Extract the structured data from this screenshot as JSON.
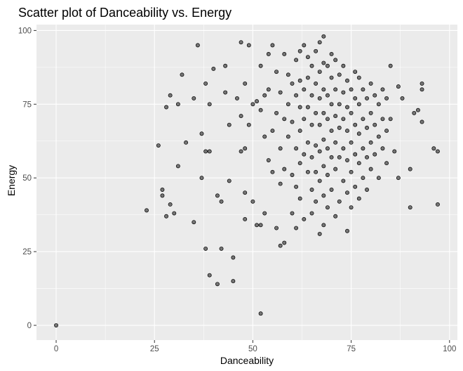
{
  "chart_data": {
    "type": "scatter",
    "title": "Scatter plot of Danceability vs. Energy",
    "xlabel": "Danceability",
    "ylabel": "Energy",
    "xlim": [
      -5,
      102
    ],
    "ylim": [
      -5,
      102
    ],
    "x_ticks": [
      0,
      25,
      50,
      75,
      100
    ],
    "y_ticks": [
      0,
      25,
      50,
      75,
      100
    ],
    "x_tick_labels": [
      "0",
      "25",
      "50",
      "75",
      "100"
    ],
    "y_tick_labels": [
      "0",
      "25",
      "50",
      "75",
      "100"
    ],
    "grid": true,
    "panel_color": "#ebebeb",
    "grid_color": "#ffffff",
    "point_color": "#4d4d4d",
    "point_outline": "#000000",
    "points": [
      [
        0,
        0
      ],
      [
        23,
        39
      ],
      [
        26,
        61
      ],
      [
        27,
        46
      ],
      [
        27,
        44
      ],
      [
        28,
        37
      ],
      [
        28,
        74
      ],
      [
        29,
        78
      ],
      [
        29,
        41
      ],
      [
        30,
        38
      ],
      [
        31,
        54
      ],
      [
        31,
        75
      ],
      [
        32,
        85
      ],
      [
        33,
        62
      ],
      [
        35,
        35
      ],
      [
        35,
        77
      ],
      [
        36,
        95
      ],
      [
        37,
        65
      ],
      [
        37,
        50
      ],
      [
        38,
        59
      ],
      [
        38,
        82
      ],
      [
        38,
        26
      ],
      [
        39,
        59
      ],
      [
        39,
        75
      ],
      [
        39,
        17
      ],
      [
        40,
        87
      ],
      [
        41,
        14
      ],
      [
        41,
        44
      ],
      [
        42,
        42
      ],
      [
        42,
        26
      ],
      [
        43,
        88
      ],
      [
        43,
        79
      ],
      [
        44,
        68
      ],
      [
        44,
        49
      ],
      [
        45,
        15
      ],
      [
        45,
        23
      ],
      [
        46,
        77
      ],
      [
        47,
        59
      ],
      [
        47,
        71
      ],
      [
        47,
        96
      ],
      [
        48,
        82
      ],
      [
        48,
        45
      ],
      [
        48,
        36
      ],
      [
        48,
        60
      ],
      [
        49,
        68
      ],
      [
        49,
        95
      ],
      [
        50,
        75
      ],
      [
        50,
        42
      ],
      [
        51,
        34
      ],
      [
        51,
        76
      ],
      [
        52,
        4
      ],
      [
        52,
        73
      ],
      [
        52,
        34
      ],
      [
        52,
        88
      ],
      [
        53,
        78
      ],
      [
        53,
        38
      ],
      [
        53,
        64
      ],
      [
        54,
        56
      ],
      [
        54,
        80
      ],
      [
        54,
        92
      ],
      [
        55,
        52
      ],
      [
        55,
        66
      ],
      [
        55,
        95
      ],
      [
        56,
        33
      ],
      [
        56,
        72
      ],
      [
        56,
        86
      ],
      [
        57,
        27
      ],
      [
        57,
        48
      ],
      [
        57,
        60
      ],
      [
        57,
        79
      ],
      [
        58,
        28
      ],
      [
        58,
        53
      ],
      [
        58,
        70
      ],
      [
        58,
        92
      ],
      [
        59,
        64
      ],
      [
        59,
        75
      ],
      [
        59,
        85
      ],
      [
        60,
        38
      ],
      [
        60,
        51
      ],
      [
        60,
        69
      ],
      [
        60,
        82
      ],
      [
        61,
        33
      ],
      [
        61,
        47
      ],
      [
        61,
        60
      ],
      [
        61,
        78
      ],
      [
        61,
        90
      ],
      [
        62,
        43
      ],
      [
        62,
        55
      ],
      [
        62,
        66
      ],
      [
        62,
        74
      ],
      [
        62,
        83
      ],
      [
        62,
        93
      ],
      [
        63,
        36
      ],
      [
        63,
        58
      ],
      [
        63,
        70
      ],
      [
        63,
        80
      ],
      [
        63,
        95
      ],
      [
        64,
        52
      ],
      [
        64,
        62
      ],
      [
        64,
        74
      ],
      [
        64,
        84
      ],
      [
        64,
        91
      ],
      [
        65,
        38
      ],
      [
        65,
        46
      ],
      [
        65,
        57
      ],
      [
        65,
        68
      ],
      [
        65,
        78
      ],
      [
        65,
        88
      ],
      [
        66,
        42
      ],
      [
        66,
        52
      ],
      [
        66,
        61
      ],
      [
        66,
        72
      ],
      [
        66,
        82
      ],
      [
        66,
        93
      ],
      [
        67,
        31
      ],
      [
        67,
        49
      ],
      [
        67,
        59
      ],
      [
        67,
        68
      ],
      [
        67,
        77
      ],
      [
        67,
        86
      ],
      [
        67,
        96
      ],
      [
        68,
        34
      ],
      [
        68,
        44
      ],
      [
        68,
        54
      ],
      [
        68,
        63
      ],
      [
        68,
        72
      ],
      [
        68,
        80
      ],
      [
        68,
        89
      ],
      [
        68,
        98
      ],
      [
        69,
        40
      ],
      [
        69,
        51
      ],
      [
        69,
        60
      ],
      [
        69,
        70
      ],
      [
        69,
        78
      ],
      [
        69,
        88
      ],
      [
        70,
        46
      ],
      [
        70,
        57
      ],
      [
        70,
        66
      ],
      [
        70,
        75
      ],
      [
        70,
        84
      ],
      [
        70,
        92
      ],
      [
        71,
        37
      ],
      [
        71,
        53
      ],
      [
        71,
        62
      ],
      [
        71,
        71
      ],
      [
        71,
        80
      ],
      [
        71,
        90
      ],
      [
        72,
        42
      ],
      [
        72,
        57
      ],
      [
        72,
        67
      ],
      [
        72,
        75
      ],
      [
        72,
        85
      ],
      [
        73,
        49
      ],
      [
        73,
        60
      ],
      [
        73,
        70
      ],
      [
        73,
        79
      ],
      [
        73,
        88
      ],
      [
        74,
        32
      ],
      [
        74,
        45
      ],
      [
        74,
        56
      ],
      [
        74,
        66
      ],
      [
        74,
        74
      ],
      [
        74,
        83
      ],
      [
        75,
        40
      ],
      [
        75,
        52
      ],
      [
        75,
        62
      ],
      [
        75,
        72
      ],
      [
        75,
        80
      ],
      [
        76,
        47
      ],
      [
        76,
        58
      ],
      [
        76,
        68
      ],
      [
        76,
        77
      ],
      [
        76,
        86
      ],
      [
        77,
        43
      ],
      [
        77,
        55
      ],
      [
        77,
        65
      ],
      [
        77,
        75
      ],
      [
        77,
        84
      ],
      [
        78,
        50
      ],
      [
        78,
        60
      ],
      [
        78,
        70
      ],
      [
        78,
        80
      ],
      [
        79,
        46
      ],
      [
        79,
        57
      ],
      [
        79,
        67
      ],
      [
        79,
        77
      ],
      [
        80,
        53
      ],
      [
        80,
        62
      ],
      [
        80,
        72
      ],
      [
        80,
        82
      ],
      [
        81,
        58
      ],
      [
        81,
        68
      ],
      [
        81,
        78
      ],
      [
        82,
        50
      ],
      [
        82,
        64
      ],
      [
        82,
        75
      ],
      [
        83,
        60
      ],
      [
        83,
        70
      ],
      [
        83,
        80
      ],
      [
        84,
        55
      ],
      [
        84,
        66
      ],
      [
        84,
        77
      ],
      [
        85,
        70
      ],
      [
        85,
        88
      ],
      [
        86,
        59
      ],
      [
        87,
        50
      ],
      [
        87,
        81
      ],
      [
        88,
        77
      ],
      [
        90,
        40
      ],
      [
        90,
        53
      ],
      [
        91,
        72
      ],
      [
        92,
        73
      ],
      [
        93,
        69
      ],
      [
        93,
        80
      ],
      [
        93,
        82
      ],
      [
        96,
        60
      ],
      [
        97,
        41
      ],
      [
        97,
        59
      ]
    ]
  }
}
